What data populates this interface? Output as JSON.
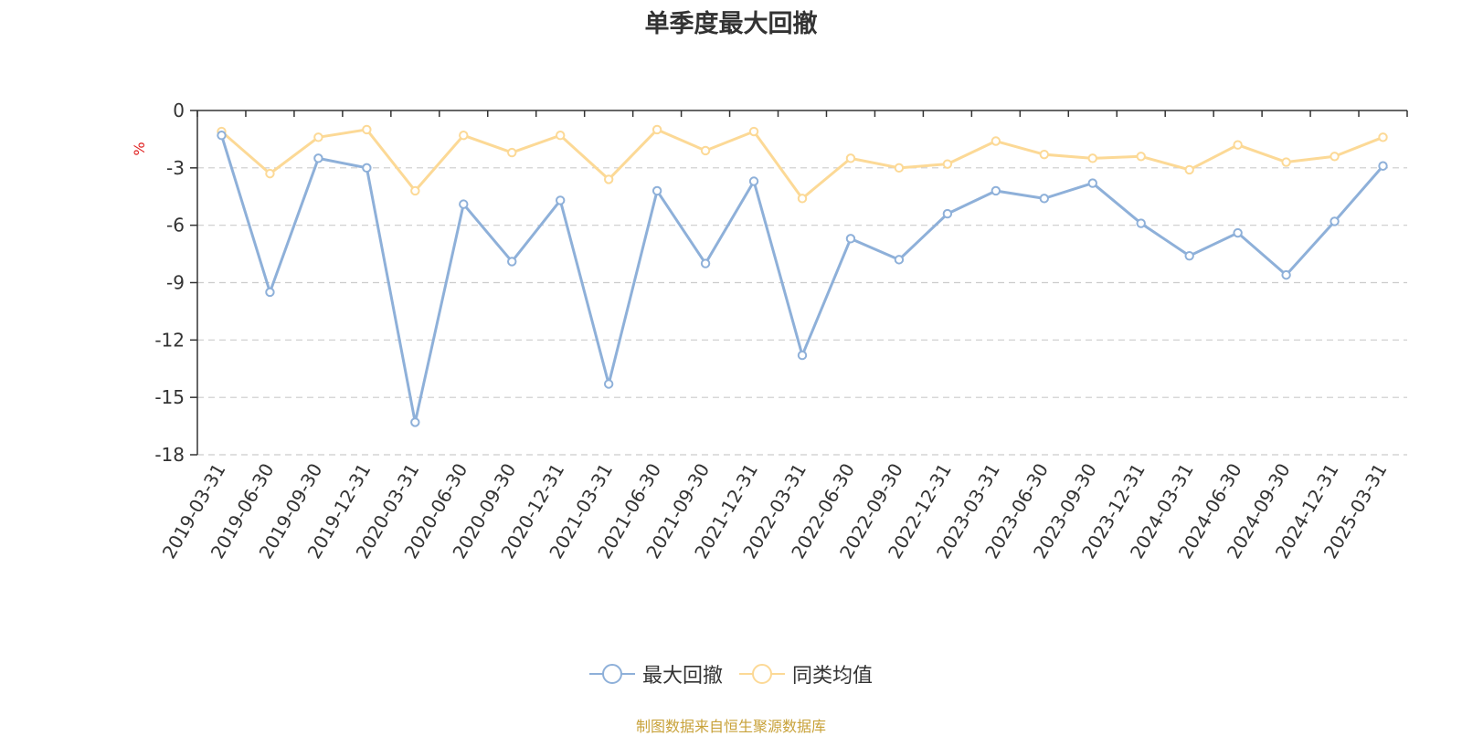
{
  "chart_data": {
    "type": "line",
    "title": "单季度最大回撤",
    "ylabel": "%",
    "ylim": [
      -18,
      0
    ],
    "yticks": [
      0,
      -3,
      -6,
      -9,
      -12,
      -15,
      -18
    ],
    "grid": true,
    "legend_position": "bottom",
    "categories": [
      "2019-03-31",
      "2019-06-30",
      "2019-09-30",
      "2019-12-31",
      "2020-03-31",
      "2020-06-30",
      "2020-09-30",
      "2020-12-31",
      "2021-03-31",
      "2021-06-30",
      "2021-09-30",
      "2021-12-31",
      "2022-03-31",
      "2022-06-30",
      "2022-09-30",
      "2022-12-31",
      "2023-03-31",
      "2023-06-30",
      "2023-09-30",
      "2023-12-31",
      "2024-03-31",
      "2024-06-30",
      "2024-09-30",
      "2024-12-31",
      "2025-03-31"
    ],
    "series": [
      {
        "name": "最大回撤",
        "color": "#8eb0d9",
        "values": [
          -1.3,
          -9.5,
          -2.5,
          -3.0,
          -16.3,
          -4.9,
          -7.9,
          -4.7,
          -14.3,
          -4.2,
          -8.0,
          -3.7,
          -12.8,
          -6.7,
          -7.8,
          -5.4,
          -4.2,
          -4.6,
          -3.8,
          -5.9,
          -7.6,
          -6.4,
          -8.6,
          -5.8,
          -2.9
        ]
      },
      {
        "name": "同类均值",
        "color": "#fcd996",
        "values": [
          -1.1,
          -3.3,
          -1.4,
          -1.0,
          -4.2,
          -1.3,
          -2.2,
          -1.3,
          -3.6,
          -1.0,
          -2.1,
          -1.1,
          -4.6,
          -2.5,
          -3.0,
          -2.8,
          -1.6,
          -2.3,
          -2.5,
          -2.4,
          -3.1,
          -1.8,
          -2.7,
          -2.4,
          -1.4
        ]
      }
    ]
  },
  "source_note": "制图数据来自恒生聚源数据库",
  "colors": {
    "title": "#333333",
    "axis": "#333333",
    "grid": "#cccccc",
    "unit_label": "#e02020",
    "source_note": "#c8a23a"
  }
}
